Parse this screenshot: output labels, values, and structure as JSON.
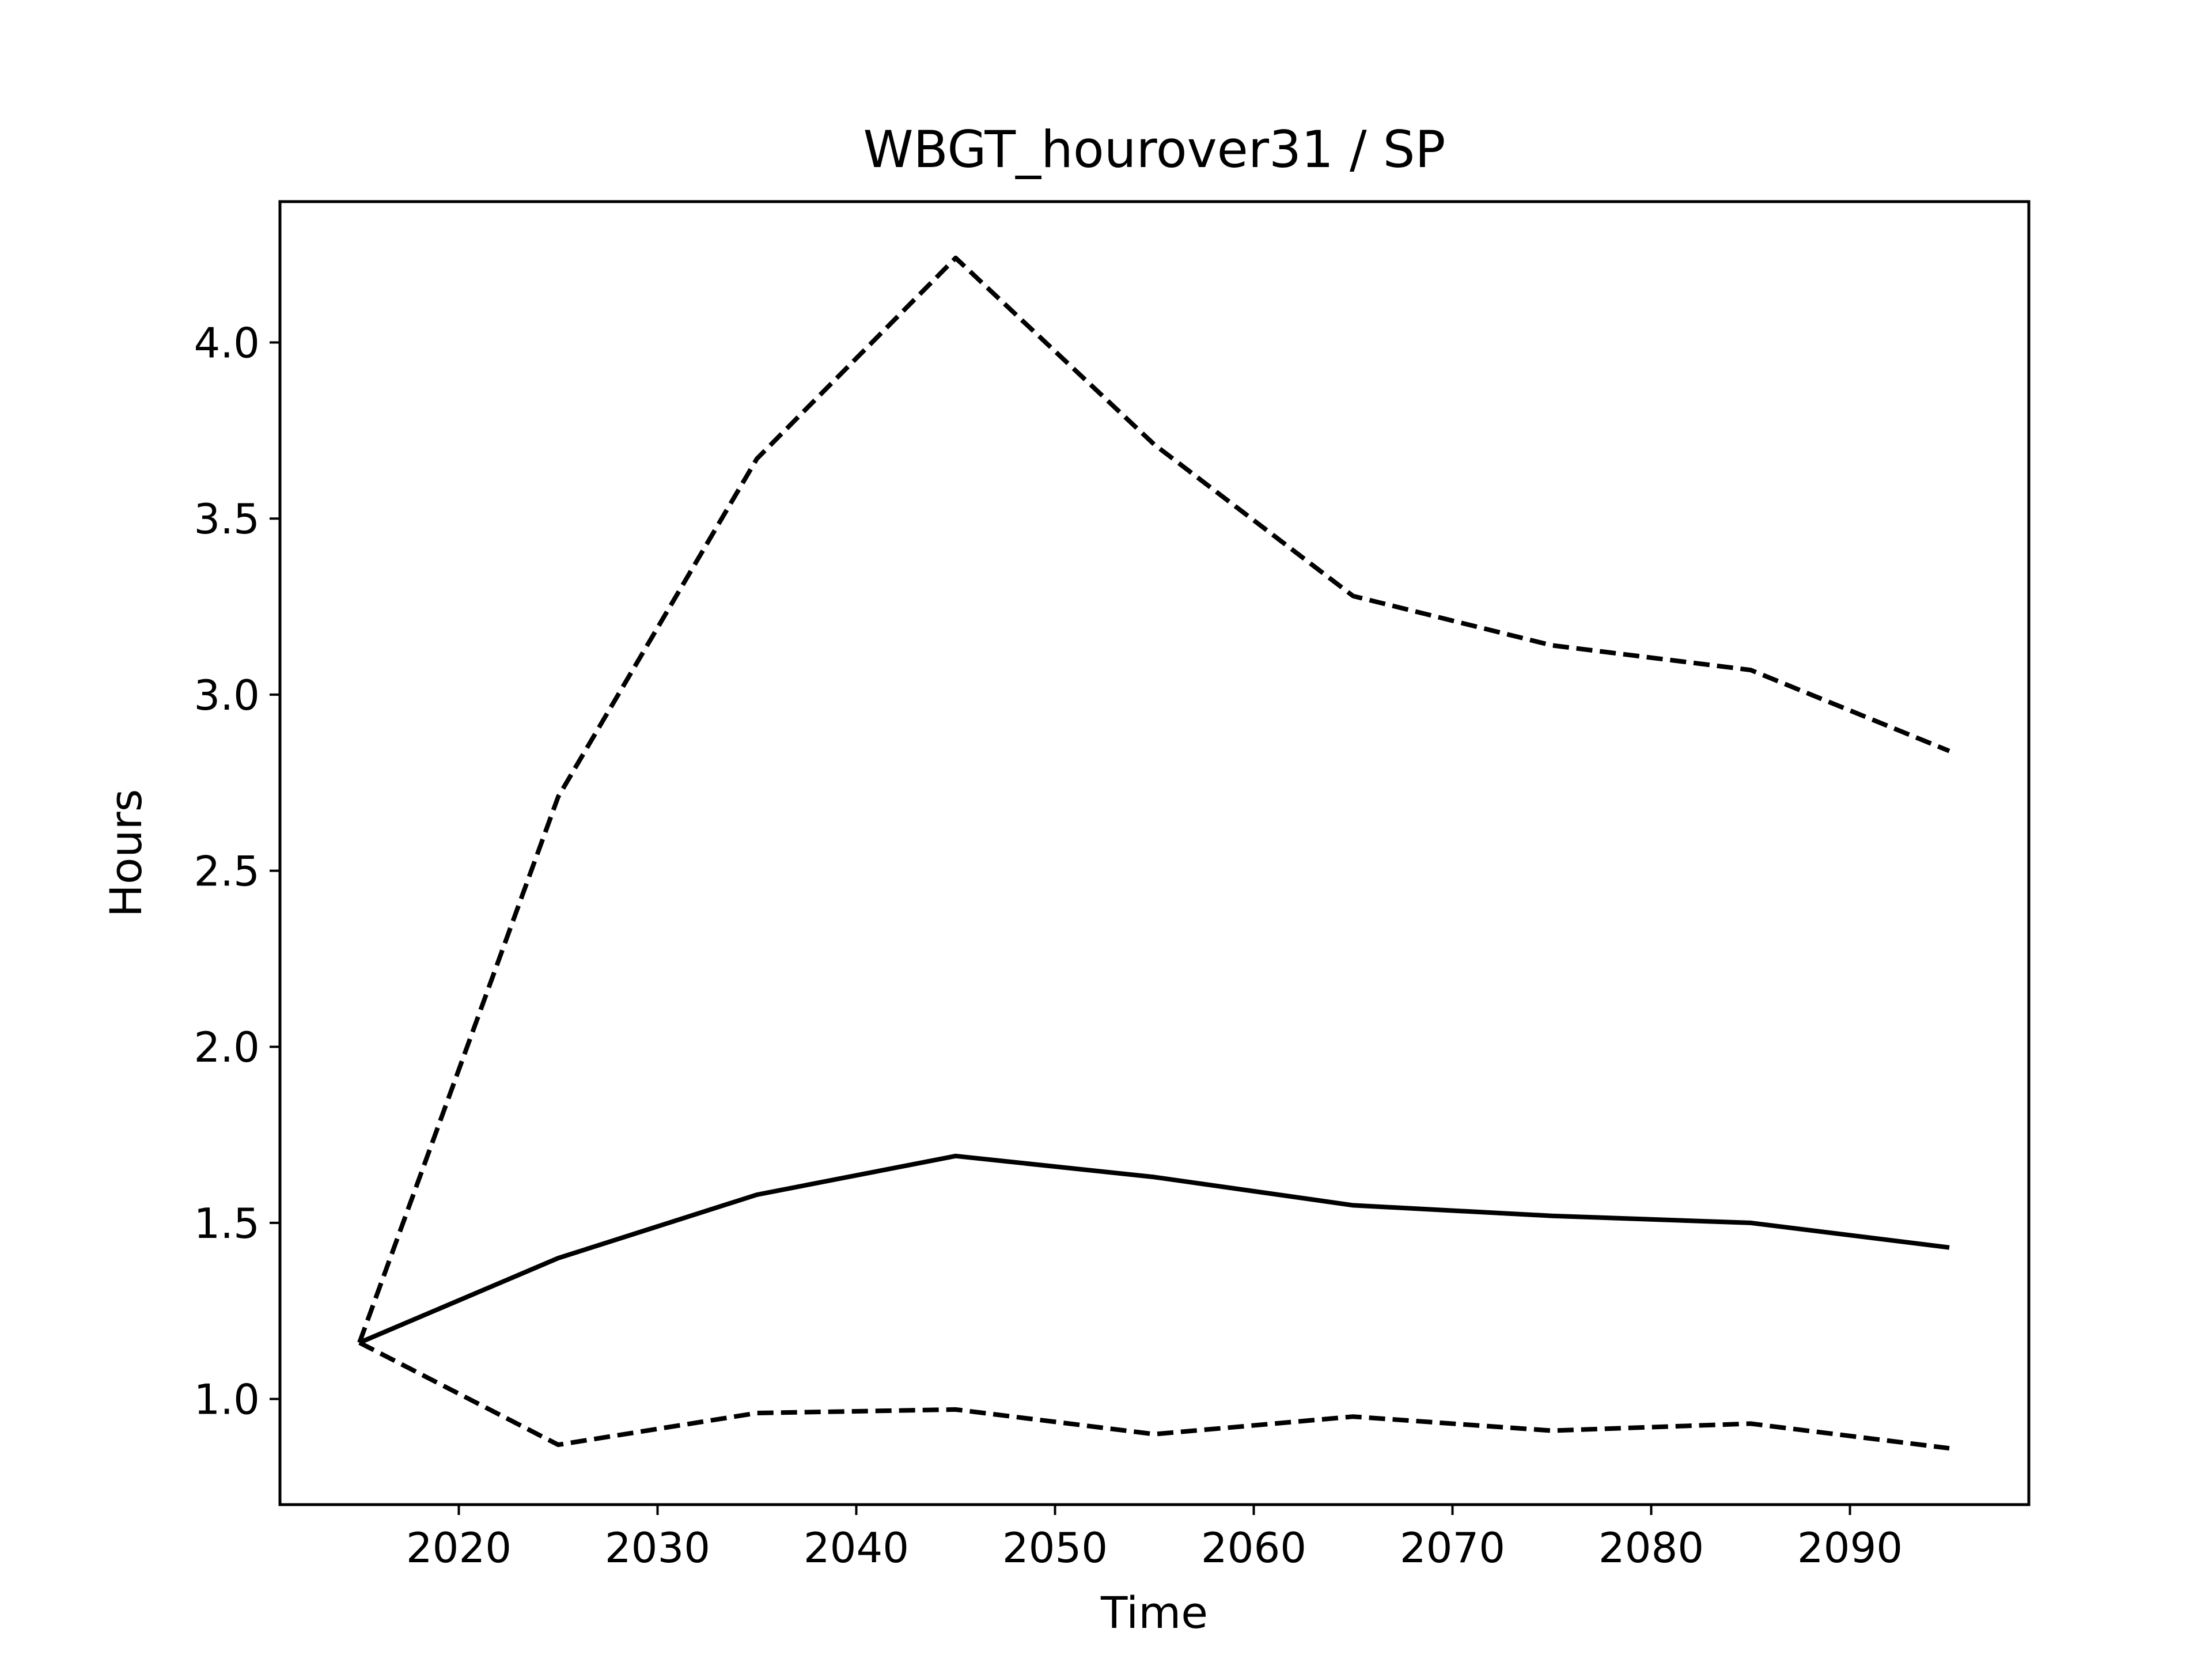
{
  "chart_data": {
    "type": "line",
    "title": "WBGT_hourover31 / SP",
    "xlabel": "Time",
    "ylabel": "Hours",
    "xlim": [
      2011,
      2099
    ],
    "ylim": [
      0.7,
      4.4
    ],
    "x_ticks": [
      2020,
      2030,
      2040,
      2050,
      2060,
      2070,
      2080,
      2090
    ],
    "x_tick_labels": [
      "2020",
      "2030",
      "2040",
      "2050",
      "2060",
      "2070",
      "2080",
      "2090"
    ],
    "y_ticks": [
      1.0,
      1.5,
      2.0,
      2.5,
      3.0,
      3.5,
      4.0
    ],
    "y_tick_labels": [
      "1.0",
      "1.5",
      "2.0",
      "2.5",
      "3.0",
      "3.5",
      "4.0"
    ],
    "grid": false,
    "x": [
      2015,
      2025,
      2035,
      2045,
      2055,
      2065,
      2075,
      2085,
      2095
    ],
    "series": [
      {
        "style": "solid",
        "color": "#000000",
        "values": [
          1.16,
          1.4,
          1.58,
          1.69,
          1.63,
          1.55,
          1.52,
          1.5,
          1.43
        ]
      },
      {
        "style": "dashed",
        "color": "#000000",
        "values": [
          1.16,
          2.71,
          3.67,
          4.24,
          3.71,
          3.28,
          3.14,
          3.07,
          2.84
        ]
      },
      {
        "style": "dashed",
        "color": "#000000",
        "values": [
          1.16,
          0.87,
          0.96,
          0.97,
          0.9,
          0.95,
          0.91,
          0.93,
          0.86
        ]
      }
    ]
  }
}
